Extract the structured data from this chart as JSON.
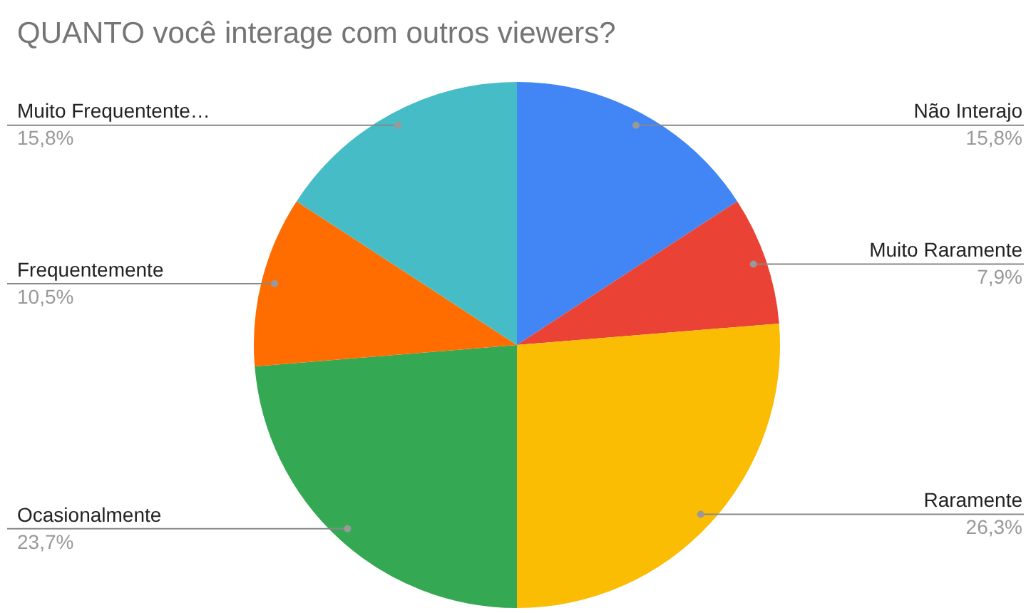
{
  "chart_data": {
    "type": "pie",
    "title": "QUANTO você interage com outros viewers?",
    "categories": [
      "Não Interajo",
      "Muito Raramente",
      "Raramente",
      "Ocasionalmente",
      "Frequentemente",
      "Muito Frequentente…"
    ],
    "values": [
      15.8,
      7.9,
      26.3,
      23.7,
      10.5,
      15.8
    ],
    "value_labels": [
      "15,8%",
      "7,9%",
      "26,3%",
      "23,7%",
      "10,5%",
      "15,8%"
    ],
    "colors": [
      "#4285f4",
      "#ea4335",
      "#fbbc04",
      "#34a853",
      "#ff6d01",
      "#46bdc6"
    ],
    "legend": false
  }
}
